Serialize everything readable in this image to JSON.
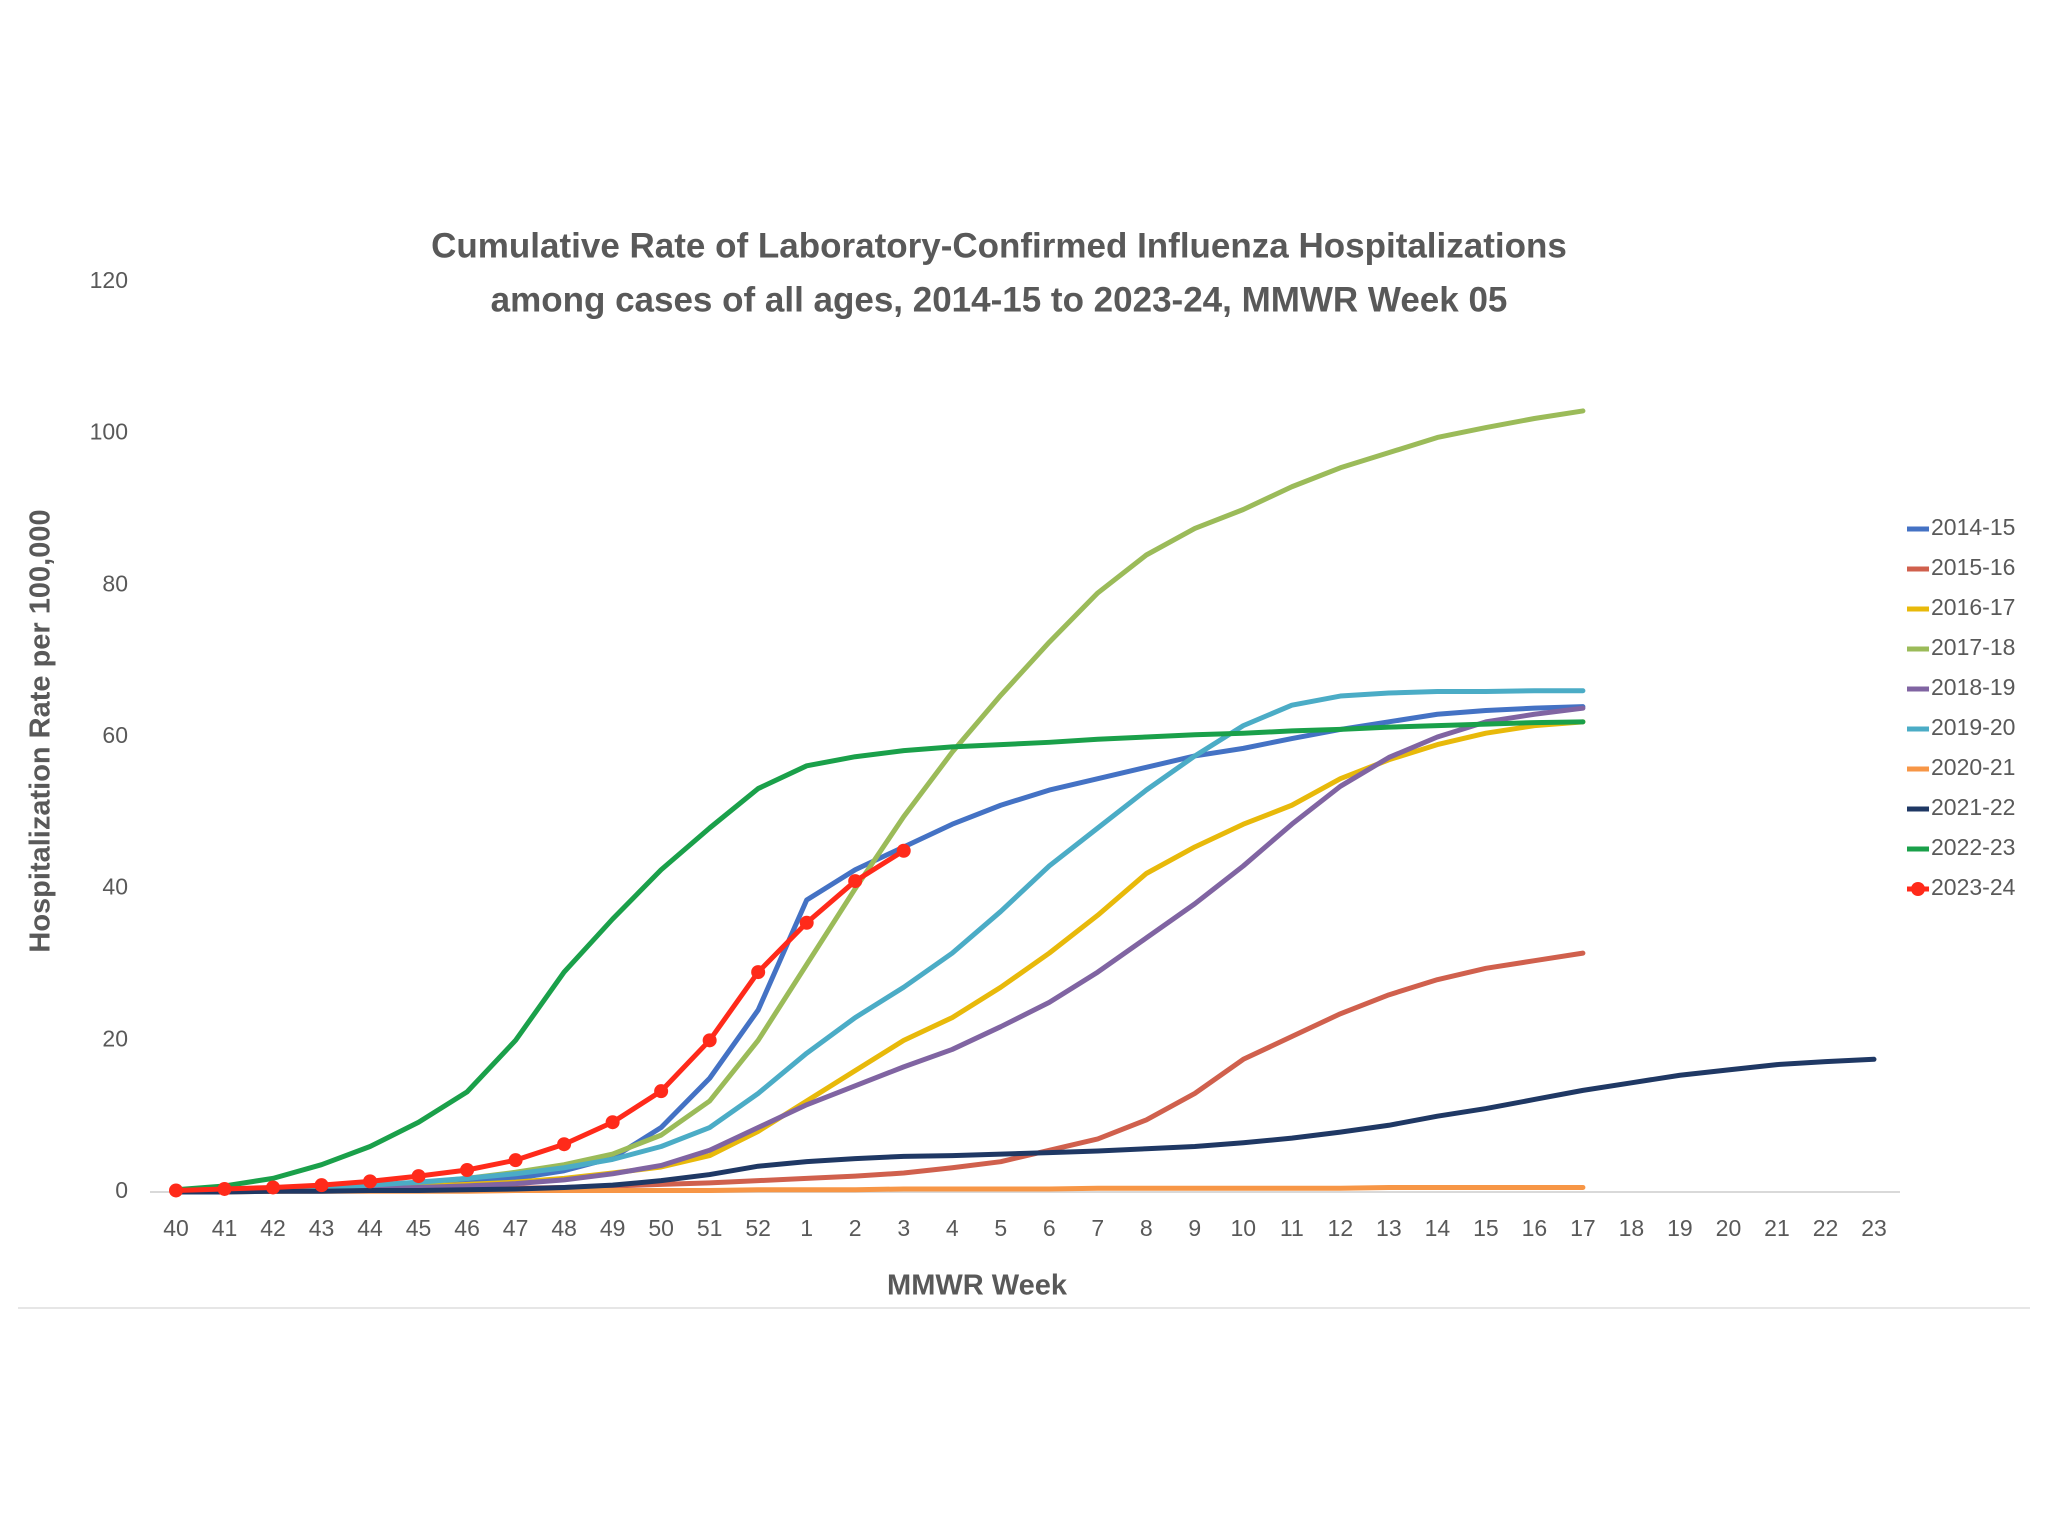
{
  "chart_data": {
    "type": "line",
    "title": [
      "Cumulative Rate of Laboratory-Confirmed Influenza Hospitalizations",
      "among cases of all ages, 2014-15 to 2023-24, MMWR Week 05"
    ],
    "x_label": "MMWR Week",
    "y_label": "Hospitalization Rate per 100,000",
    "categories": [
      "40",
      "41",
      "42",
      "43",
      "44",
      "45",
      "46",
      "47",
      "48",
      "49",
      "50",
      "51",
      "52",
      "1",
      "2",
      "3",
      "4",
      "5",
      "6",
      "7",
      "8",
      "9",
      "10",
      "11",
      "12",
      "13",
      "14",
      "15",
      "16",
      "17",
      "18",
      "19",
      "20",
      "21",
      "22",
      "23"
    ],
    "ylim": [
      0,
      120
    ],
    "yticks": [
      0,
      20,
      40,
      60,
      80,
      100,
      120
    ],
    "grid": false,
    "legend": "right",
    "series": [
      {
        "name": "2014-15",
        "color": "#4472c4",
        "values": [
          0,
          0.1,
          0.2,
          0.3,
          0.5,
          0.8,
          1.2,
          1.8,
          2.8,
          4.5,
          8.5,
          15,
          24,
          38.5,
          42.5,
          45.5,
          48.5,
          51,
          53,
          54.5,
          56,
          57.5,
          58.5,
          59.8,
          61,
          62,
          63,
          63.5,
          63.8,
          64,
          null,
          null,
          null,
          null,
          null,
          null
        ]
      },
      {
        "name": "2015-16",
        "color": "#d0604d",
        "values": [
          0,
          0.1,
          0.1,
          0.2,
          0.2,
          0.3,
          0.4,
          0.5,
          0.6,
          0.8,
          1,
          1.2,
          1.5,
          1.8,
          2.1,
          2.5,
          3.2,
          4,
          5.5,
          7,
          9.5,
          13,
          17.5,
          20.5,
          23.5,
          26,
          28,
          29.5,
          30.5,
          31.5,
          null,
          null,
          null,
          null,
          null,
          null
        ]
      },
      {
        "name": "2016-17",
        "color": "#e8b90a",
        "values": [
          0,
          0.1,
          0.2,
          0.3,
          0.5,
          0.7,
          1,
          1.3,
          1.8,
          2.5,
          3.3,
          4.8,
          8,
          12,
          16,
          20,
          23,
          27,
          31.5,
          36.5,
          42,
          45.5,
          48.5,
          51,
          54.5,
          57,
          59,
          60.5,
          61.5,
          62,
          null,
          null,
          null,
          null,
          null,
          null
        ]
      },
      {
        "name": "2017-18",
        "color": "#9bbb59",
        "values": [
          0,
          0.1,
          0.3,
          0.5,
          0.8,
          1.2,
          1.8,
          2.6,
          3.6,
          5,
          7.5,
          12,
          20,
          30,
          40,
          49.5,
          58,
          65.5,
          72.5,
          79,
          84,
          87.5,
          90,
          93,
          95.5,
          97.5,
          99.5,
          100.8,
          102,
          103,
          null,
          null,
          null,
          null,
          null,
          null
        ]
      },
      {
        "name": "2018-19",
        "color": "#8064a2",
        "values": [
          0,
          0.1,
          0.2,
          0.3,
          0.4,
          0.6,
          0.8,
          1.1,
          1.6,
          2.4,
          3.5,
          5.5,
          8.5,
          11.5,
          14,
          16.5,
          18.8,
          21.8,
          25,
          29,
          33.5,
          38,
          43,
          48.5,
          53.5,
          57.3,
          60,
          62,
          63,
          63.8,
          null,
          null,
          null,
          null,
          null,
          null
        ]
      },
      {
        "name": "2019-20",
        "color": "#4bacc6",
        "values": [
          0,
          0.2,
          0.4,
          0.6,
          0.9,
          1.3,
          1.8,
          2.4,
          3.2,
          4.3,
          6,
          8.5,
          13,
          18.3,
          23,
          27,
          31.5,
          37,
          43,
          48,
          53,
          57.5,
          61.5,
          64.2,
          65.4,
          65.8,
          66,
          66,
          66.1,
          66.1,
          null,
          null,
          null,
          null,
          null,
          null
        ]
      },
      {
        "name": "2020-21",
        "color": "#f79646",
        "values": [
          0,
          0,
          0.1,
          0.1,
          0.1,
          0.1,
          0.1,
          0.2,
          0.2,
          0.2,
          0.2,
          0.2,
          0.3,
          0.3,
          0.3,
          0.4,
          0.4,
          0.4,
          0.4,
          0.5,
          0.5,
          0.5,
          0.5,
          0.5,
          0.5,
          0.6,
          0.6,
          0.6,
          0.6,
          0.6,
          null,
          null,
          null,
          null,
          null,
          null
        ]
      },
      {
        "name": "2021-22",
        "color": "#1f3864",
        "values": [
          0,
          0,
          0.1,
          0.1,
          0.2,
          0.2,
          0.3,
          0.4,
          0.6,
          0.9,
          1.5,
          2.3,
          3.4,
          4,
          4.4,
          4.7,
          4.8,
          5,
          5.2,
          5.4,
          5.7,
          6,
          6.5,
          7.1,
          7.9,
          8.8,
          10,
          11,
          12.2,
          13.4,
          14.4,
          15.4,
          16.1,
          16.8,
          17.2,
          17.5
        ]
      },
      {
        "name": "2022-23",
        "color": "#1aa04a",
        "values": [
          0.3,
          0.8,
          1.8,
          3.6,
          6,
          9.2,
          13.2,
          20,
          29,
          36,
          42.5,
          48,
          53.2,
          56.2,
          57.4,
          58.2,
          58.7,
          59,
          59.3,
          59.7,
          60,
          60.3,
          60.5,
          60.8,
          61,
          61.3,
          61.5,
          61.7,
          61.9,
          62,
          null,
          null,
          null,
          null,
          null,
          null
        ]
      },
      {
        "name": "2023-24",
        "color": "#ff2a1a",
        "markers": true,
        "values": [
          0.2,
          0.4,
          0.6,
          0.9,
          1.4,
          2.1,
          2.9,
          4.2,
          6.3,
          9.2,
          13.3,
          20,
          29,
          35.5,
          41,
          45,
          null,
          null,
          null,
          null,
          null,
          null,
          null,
          null,
          null,
          null,
          null,
          null,
          null,
          null,
          null,
          null,
          null,
          null,
          null,
          null
        ]
      }
    ]
  }
}
